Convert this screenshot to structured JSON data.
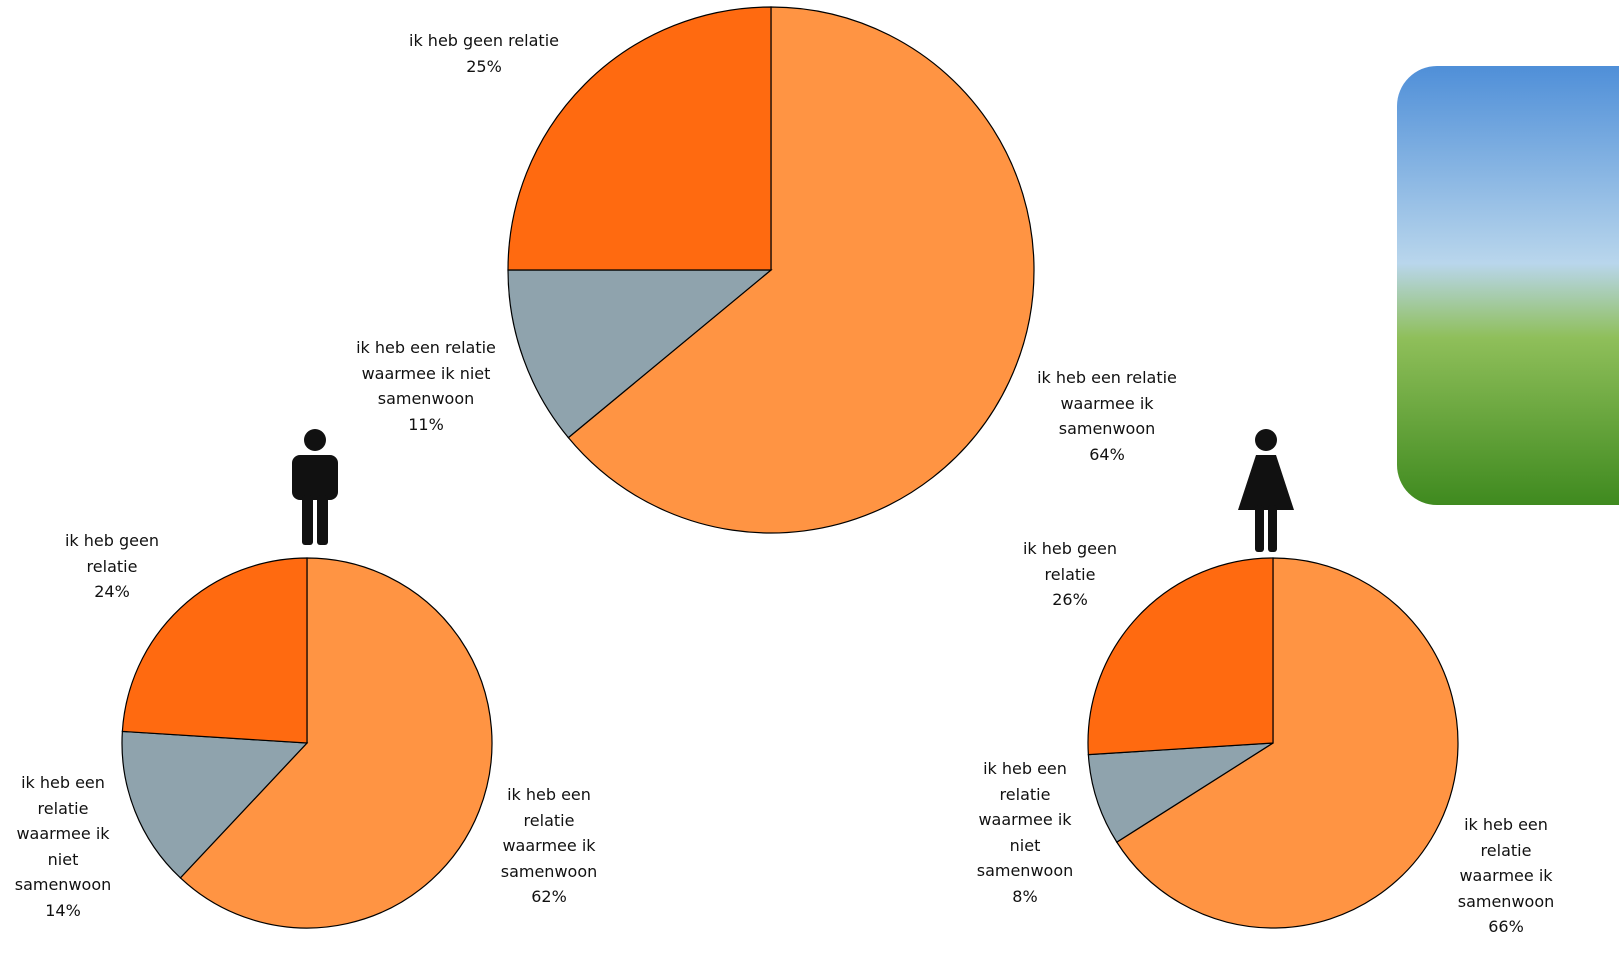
{
  "chart_data": [
    {
      "type": "pie",
      "categories": [
        "ik heb een relatie waarmee ik samenwoon",
        "ik heb een relatie waarmee ik niet samenwoon",
        "ik heb geen relatie"
      ],
      "values": [
        64,
        11,
        25
      ],
      "value_labels": [
        "64%",
        "11%",
        "25%"
      ],
      "colors": [
        "#ff9443",
        "#8fa3ad",
        "#ff6a10"
      ]
    },
    {
      "type": "pie",
      "categories": [
        "ik heb een relatie waarmee ik samenwoon",
        "ik heb een relatie waarmee ik niet samenwoon",
        "ik heb geen relatie"
      ],
      "values": [
        62,
        14,
        24
      ],
      "value_labels": [
        "62%",
        "14%",
        "24%"
      ],
      "colors": [
        "#ff9443",
        "#8fa3ad",
        "#ff6a10"
      ]
    },
    {
      "type": "pie",
      "categories": [
        "ik heb een relatie waarmee ik samenwoon",
        "ik heb een relatie waarmee ik niet samenwoon",
        "ik heb geen relatie"
      ],
      "values": [
        66,
        8,
        26
      ],
      "value_labels": [
        "66%",
        "8%",
        "26%"
      ],
      "colors": [
        "#ff9443",
        "#8fa3ad",
        "#ff6a10"
      ]
    }
  ]
}
